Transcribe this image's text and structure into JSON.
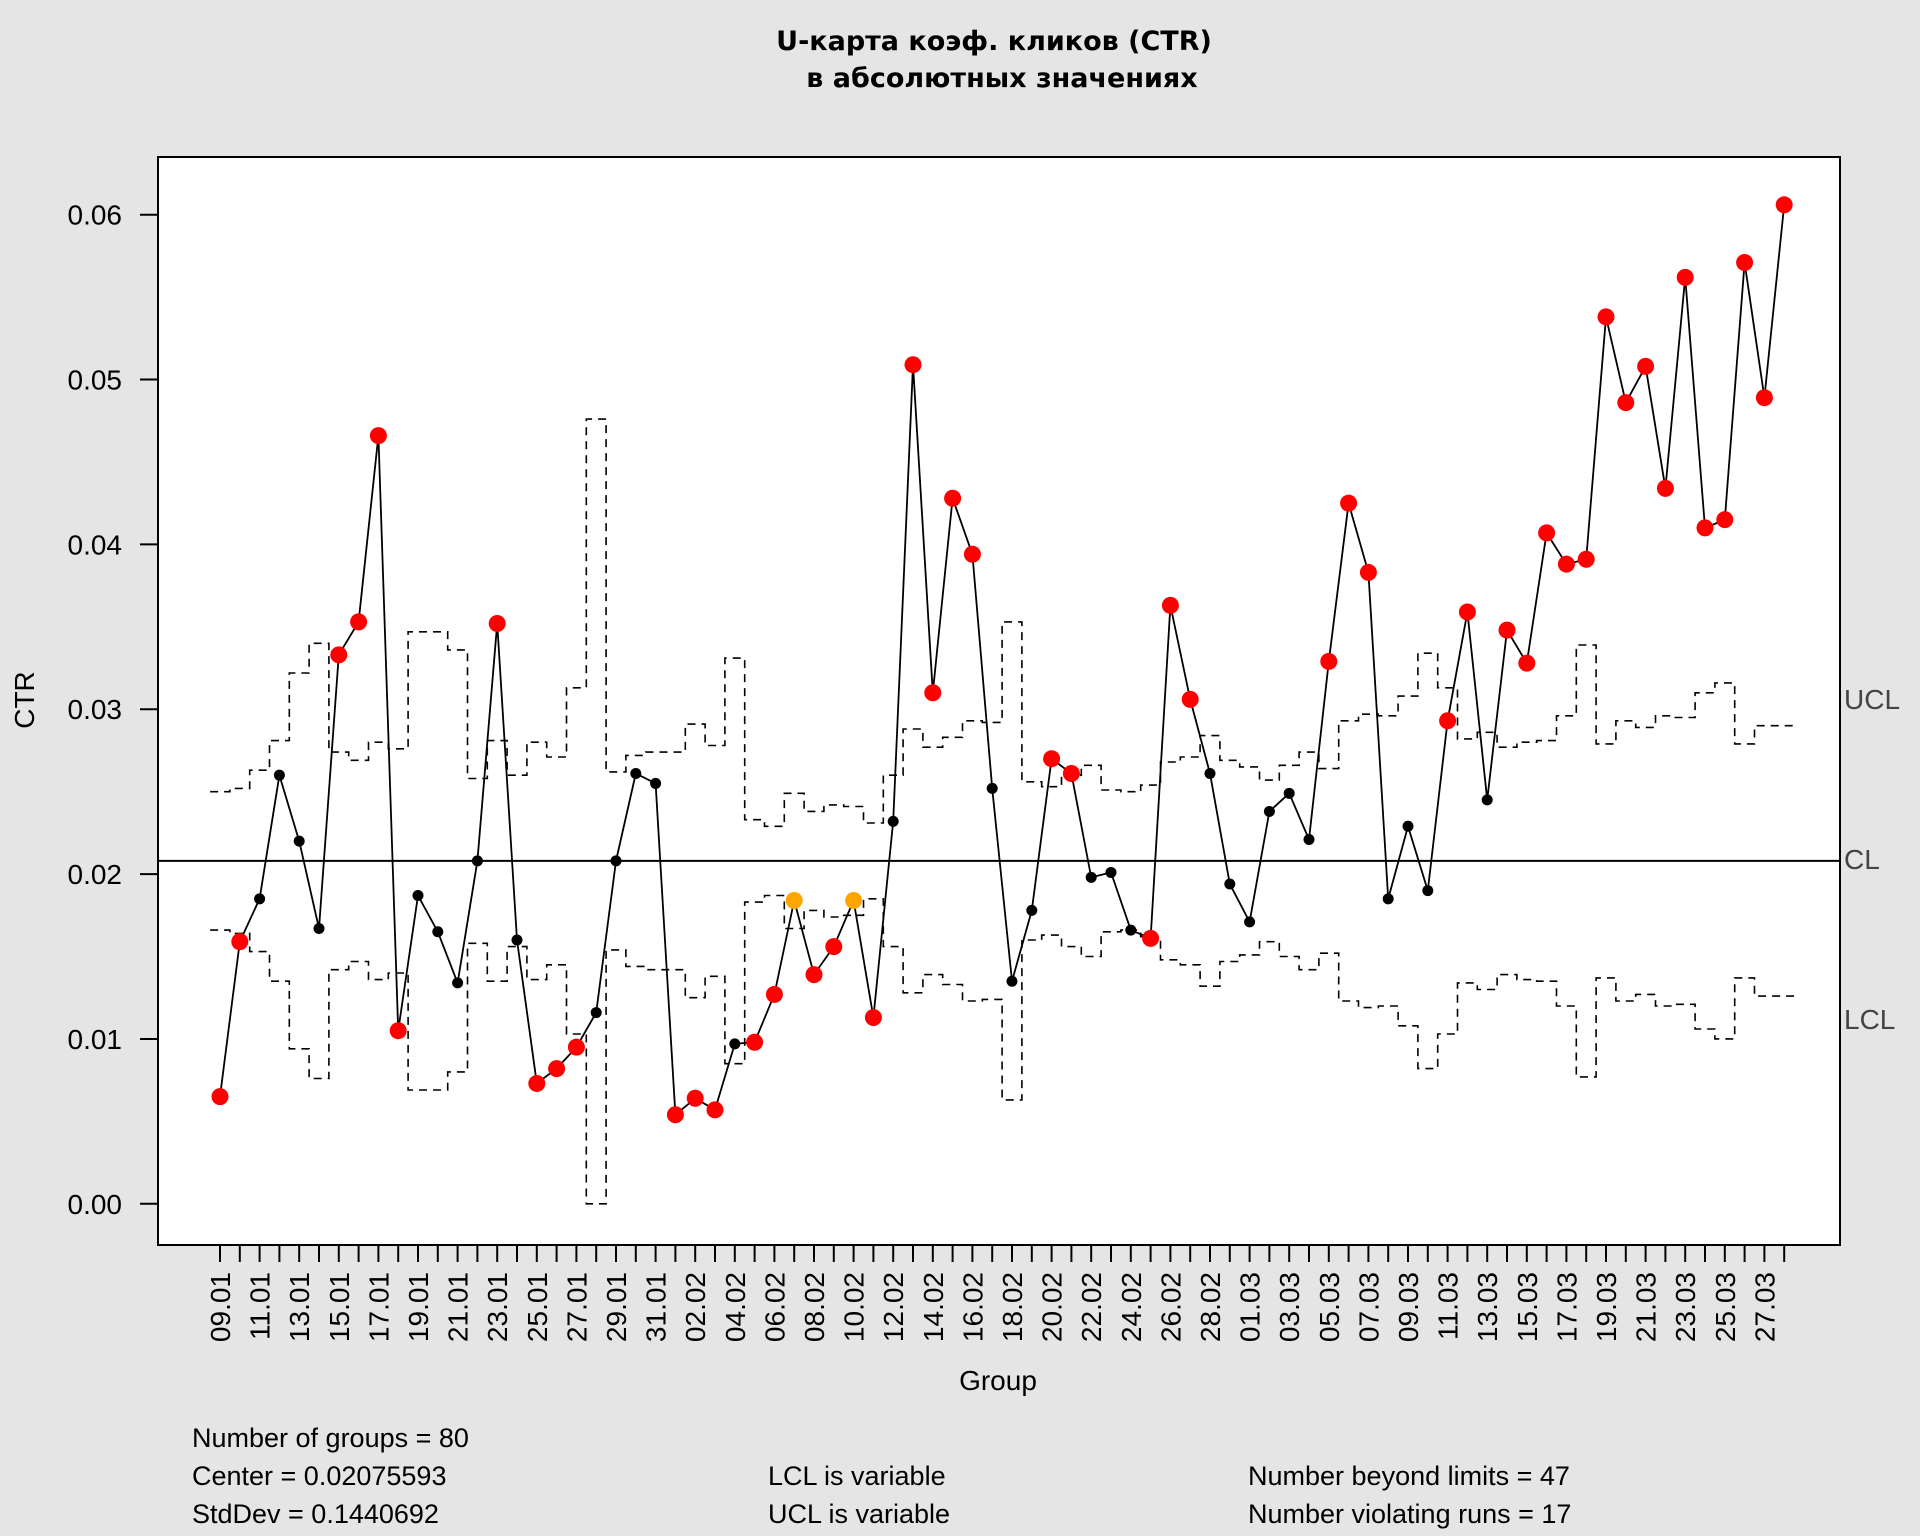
{
  "chart_data": {
    "type": "line",
    "title_line1": "U-карта коэф. кликов (CTR)",
    "title_line2": "в абсолютных значениях",
    "xlabel": "Group",
    "ylabel": "CTR",
    "ylim": [
      -0.0025,
      0.0635
    ],
    "y_ticks": [
      "0.00",
      "0.01",
      "0.02",
      "0.03",
      "0.04",
      "0.05",
      "0.06"
    ],
    "y_tick_values": [
      0,
      0.01,
      0.02,
      0.03,
      0.04,
      0.05,
      0.06
    ],
    "x_tick_labels": [
      "09.01",
      "11.01",
      "13.01",
      "15.01",
      "17.01",
      "19.01",
      "21.01",
      "23.01",
      "25.01",
      "27.01",
      "29.01",
      "31.01",
      "02.02",
      "04.02",
      "06.02",
      "08.02",
      "10.02",
      "12.02",
      "14.02",
      "16.02",
      "18.02",
      "20.02",
      "22.02",
      "24.02",
      "26.02",
      "28.02",
      "01.03",
      "03.03",
      "05.03",
      "07.03",
      "09.03",
      "11.03",
      "13.03",
      "15.03",
      "17.03",
      "19.03",
      "21.03",
      "23.03",
      "25.03",
      "27.03"
    ],
    "center": 0.0208,
    "ucl_label": "UCL",
    "cl_label": "CL",
    "lcl_label": "LCL",
    "colors": {
      "beyond": "#ff0000",
      "violating": "#ffa500",
      "normal": "#000000",
      "panel": "#ffffff",
      "background": "#e5e5e5"
    },
    "values": [
      0.0065,
      0.0159,
      0.0185,
      0.026,
      0.022,
      0.0167,
      0.0333,
      0.0353,
      0.0466,
      0.0105,
      0.0187,
      0.0165,
      0.0134,
      0.0208,
      0.0352,
      0.016,
      0.0073,
      0.0082,
      0.0095,
      0.0116,
      0.0208,
      0.0261,
      0.0255,
      0.0054,
      0.0064,
      0.0057,
      0.0097,
      0.0098,
      0.0127,
      0.0184,
      0.0139,
      0.0156,
      0.0184,
      0.0113,
      0.0232,
      0.0509,
      0.031,
      0.0428,
      0.0394,
      0.0252,
      0.0135,
      0.0178,
      0.027,
      0.0261,
      0.0198,
      0.0201,
      0.0166,
      0.0161,
      0.0363,
      0.0306,
      0.0261,
      0.0194,
      0.0171,
      0.0238,
      0.0249,
      0.0221,
      0.0329,
      0.0425,
      0.0383,
      0.0185,
      0.0229,
      0.019,
      0.0293,
      0.0359,
      0.0245,
      0.0348,
      0.0328,
      0.0407,
      0.0388,
      0.0391,
      0.0538,
      0.0486,
      0.0508,
      0.0434,
      0.0562,
      0.041,
      0.0415,
      0.0571,
      0.0489,
      0.0606
    ],
    "status": [
      1,
      1,
      0,
      0,
      0,
      0,
      1,
      1,
      1,
      1,
      0,
      0,
      0,
      0,
      1,
      0,
      1,
      1,
      1,
      0,
      0,
      0,
      0,
      1,
      1,
      1,
      0,
      1,
      1,
      2,
      1,
      1,
      2,
      1,
      0,
      1,
      1,
      1,
      1,
      0,
      0,
      0,
      1,
      1,
      0,
      0,
      0,
      1,
      1,
      1,
      0,
      0,
      0,
      0,
      0,
      0,
      1,
      1,
      1,
      0,
      0,
      0,
      1,
      1,
      0,
      1,
      1,
      1,
      1,
      1,
      1,
      1,
      1,
      1,
      1,
      1,
      1,
      1,
      1,
      1
    ],
    "ucl": [
      0.025,
      0.0252,
      0.0263,
      0.0281,
      0.0322,
      0.034,
      0.0274,
      0.0269,
      0.028,
      0.0276,
      0.0347,
      0.0347,
      0.0336,
      0.0258,
      0.0281,
      0.026,
      0.028,
      0.0271,
      0.0313,
      0.0476,
      0.0262,
      0.0272,
      0.0274,
      0.0274,
      0.0291,
      0.0278,
      0.0331,
      0.0233,
      0.0229,
      0.0249,
      0.0238,
      0.0242,
      0.0241,
      0.0231,
      0.026,
      0.0288,
      0.0277,
      0.0283,
      0.0293,
      0.0292,
      0.0353,
      0.0256,
      0.0253,
      0.026,
      0.0266,
      0.0251,
      0.025,
      0.0254,
      0.0268,
      0.0271,
      0.0284,
      0.0269,
      0.0265,
      0.0257,
      0.0266,
      0.0274,
      0.0264,
      0.0293,
      0.0297,
      0.0296,
      0.0308,
      0.0334,
      0.0313,
      0.0282,
      0.0286,
      0.0277,
      0.028,
      0.0281,
      0.0296,
      0.0339,
      0.0279,
      0.0293,
      0.0289,
      0.0296,
      0.0295,
      0.031,
      0.0316,
      0.0279,
      0.029,
      0.029
    ],
    "lcl": [
      0.0166,
      0.0164,
      0.0153,
      0.0135,
      0.0094,
      0.0076,
      0.0142,
      0.0147,
      0.0136,
      0.014,
      0.0069,
      0.0069,
      0.008,
      0.0158,
      0.0135,
      0.0156,
      0.0136,
      0.0145,
      0.0103,
      0.0,
      0.0154,
      0.0144,
      0.0142,
      0.0142,
      0.0125,
      0.0138,
      0.0085,
      0.0183,
      0.0187,
      0.0167,
      0.0178,
      0.0174,
      0.0175,
      0.0185,
      0.0156,
      0.0128,
      0.0139,
      0.0133,
      0.0123,
      0.0124,
      0.0063,
      0.016,
      0.0163,
      0.0156,
      0.015,
      0.0165,
      0.0166,
      0.0162,
      0.0148,
      0.0145,
      0.0132,
      0.0147,
      0.0151,
      0.0159,
      0.015,
      0.0142,
      0.0152,
      0.0123,
      0.0119,
      0.012,
      0.0108,
      0.0082,
      0.0103,
      0.0134,
      0.013,
      0.0139,
      0.0136,
      0.0135,
      0.012,
      0.0077,
      0.0137,
      0.0123,
      0.0127,
      0.012,
      0.0121,
      0.0106,
      0.01,
      0.0137,
      0.0126,
      0.0126
    ]
  },
  "stats": {
    "groups": "Number of groups = 80",
    "center": "Center = 0.02075593",
    "stddev": "StdDev = 0.1440692",
    "lcl": "LCL is variable",
    "ucl": "UCL is variable",
    "beyond": "Number beyond limits = 47",
    "runs": "Number violating runs = 17"
  }
}
